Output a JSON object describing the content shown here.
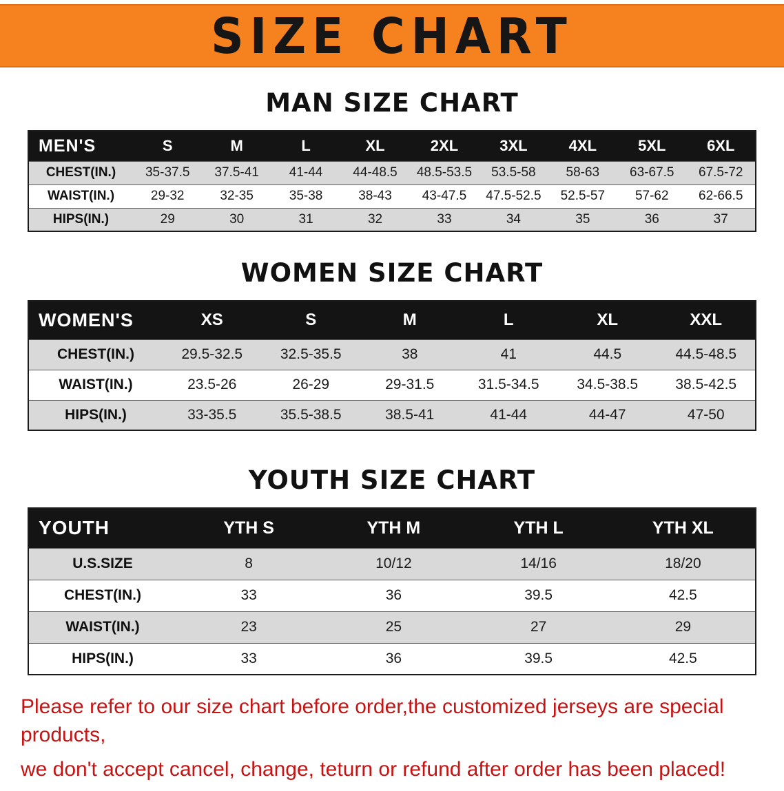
{
  "banner": {
    "title": "SIZE CHART",
    "bg_color": "#F6821F"
  },
  "sections": [
    {
      "id": "men",
      "title": "MAN SIZE CHART",
      "table": {
        "corner_label": "MEN'S",
        "columns": [
          "S",
          "M",
          "L",
          "XL",
          "2XL",
          "3XL",
          "4XL",
          "5XL",
          "6XL"
        ],
        "rows": [
          {
            "label": "CHEST(IN.)",
            "values": [
              "35-37.5",
              "37.5-41",
              "41-44",
              "44-48.5",
              "48.5-53.5",
              "53.5-58",
              "58-63",
              "63-67.5",
              "67.5-72"
            ]
          },
          {
            "label": "WAIST(IN.)",
            "values": [
              "29-32",
              "32-35",
              "35-38",
              "38-43",
              "43-47.5",
              "47.5-52.5",
              "52.5-57",
              "57-62",
              "62-66.5"
            ]
          },
          {
            "label": "HIPS(IN.)",
            "values": [
              "29",
              "30",
              "31",
              "32",
              "33",
              "34",
              "35",
              "36",
              "37"
            ]
          }
        ]
      }
    },
    {
      "id": "women",
      "title": "WOMEN SIZE CHART",
      "table": {
        "corner_label": "WOMEN'S",
        "columns": [
          "XS",
          "S",
          "M",
          "L",
          "XL",
          "XXL"
        ],
        "rows": [
          {
            "label": "CHEST(IN.)",
            "values": [
              "29.5-32.5",
              "32.5-35.5",
              "38",
              "41",
              "44.5",
              "44.5-48.5"
            ]
          },
          {
            "label": "WAIST(IN.)",
            "values": [
              "23.5-26",
              "26-29",
              "29-31.5",
              "31.5-34.5",
              "34.5-38.5",
              "38.5-42.5"
            ]
          },
          {
            "label": "HIPS(IN.)",
            "values": [
              "33-35.5",
              "35.5-38.5",
              "38.5-41",
              "41-44",
              "44-47",
              "47-50"
            ]
          }
        ]
      }
    },
    {
      "id": "youth",
      "title": "YOUTH SIZE CHART",
      "table": {
        "corner_label": "YOUTH",
        "columns": [
          "YTH S",
          "YTH M",
          "YTH L",
          "YTH XL"
        ],
        "rows": [
          {
            "label": "U.S.SIZE",
            "values": [
              "8",
              "10/12",
              "14/16",
              "18/20"
            ]
          },
          {
            "label": "CHEST(IN.)",
            "values": [
              "33",
              "36",
              "39.5",
              "42.5"
            ]
          },
          {
            "label": "WAIST(IN.)",
            "values": [
              "23",
              "25",
              "27",
              "29"
            ]
          },
          {
            "label": "HIPS(IN.)",
            "values": [
              "33",
              "36",
              "39.5",
              "42.5"
            ]
          }
        ]
      }
    }
  ],
  "footer": {
    "text_color": "#C41414",
    "lines": [
      "Please refer to our size chart before order,the customized jerseys are special products,",
      "we don't accept cancel, change, teturn or refund after order has been placed!"
    ]
  }
}
